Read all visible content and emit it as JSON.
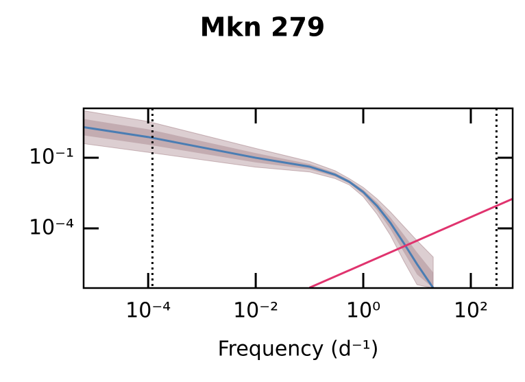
{
  "chart_data": {
    "type": "line",
    "title": "Mkn 279",
    "xlabel": "Frequency (d⁻¹)",
    "log_x": true,
    "log_y": true,
    "xlim": [
      6.3e-06,
      600
    ],
    "ylim": [
      2.9e-07,
      12.6
    ],
    "xticks": [
      {
        "value": 0.0001,
        "label": "10⁻⁴"
      },
      {
        "value": 0.01,
        "label": "10⁻²"
      },
      {
        "value": 1,
        "label": "10⁰"
      },
      {
        "value": 100,
        "label": "10²"
      }
    ],
    "yticks": [
      {
        "value": 0.1,
        "label": "10⁻¹"
      },
      {
        "value": 0.0001,
        "label": "10⁻⁴"
      }
    ],
    "vlines": [
      0.00012,
      300
    ],
    "x": [
      6.3e-06,
      0.0001,
      0.01,
      0.1,
      0.3,
      0.55,
      1,
      1.8,
      3.2,
      5.7,
      10,
      20
    ],
    "series": [
      {
        "color": "#4a7db3",
        "values": [
          2,
          0.76,
          0.1,
          0.042,
          0.019,
          0.0095,
          0.0035,
          0.0009,
          0.00017,
          2.3e-05,
          3e-06,
          2.9e-07
        ],
        "upper": [
          10,
          3.5,
          0.25,
          0.07,
          0.028,
          0.013,
          0.0055,
          0.0018,
          0.0005,
          0.00012,
          3e-05,
          6e-06
        ],
        "lower": [
          0.4,
          0.17,
          0.04,
          0.025,
          0.013,
          0.007,
          0.0022,
          0.0004,
          5e-05,
          4e-06,
          4e-07,
          2.9e-07
        ],
        "band_color": "#8b5e66"
      }
    ],
    "line2": {
      "color": "#e0336e",
      "x": [
        0.1,
        600
      ],
      "values": [
        3e-07,
        0.0018
      ]
    }
  }
}
